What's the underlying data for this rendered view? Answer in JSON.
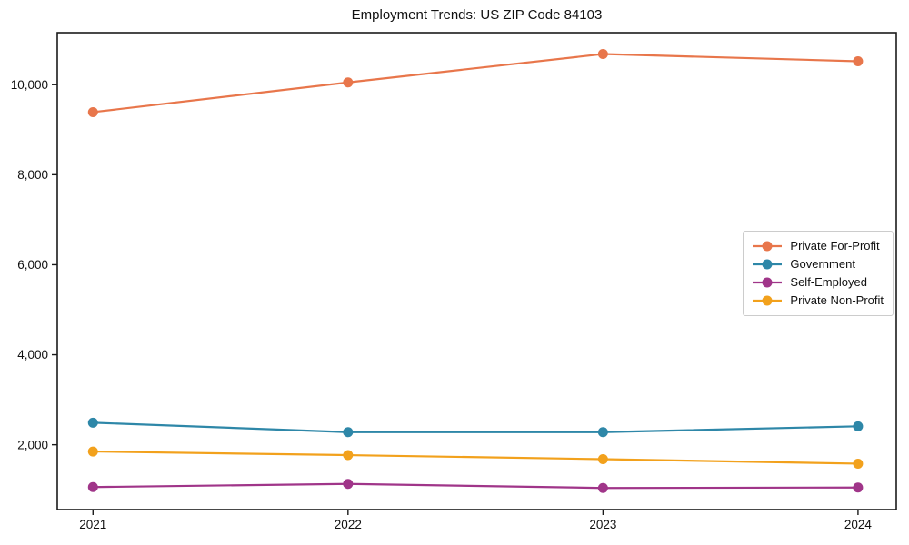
{
  "figure": {
    "title": "Employment Trends: US ZIP Code 84103"
  },
  "chart_data": {
    "type": "line",
    "title": "Employment Trends: US ZIP Code 84103",
    "xlabel": "",
    "ylabel": "",
    "x": [
      2021,
      2022,
      2023,
      2024
    ],
    "x_tick_labels": [
      "2021",
      "2022",
      "2023",
      "2024"
    ],
    "y_ticks": [
      2000,
      4000,
      6000,
      8000,
      10000
    ],
    "y_tick_labels": [
      "2,000",
      "4,000",
      "6,000",
      "8,000",
      "10,000"
    ],
    "xlim": [
      2020.86,
      2024.15
    ],
    "ylim": [
      560,
      11155
    ],
    "grid": false,
    "legend_position": "center right",
    "marker": "o",
    "series": [
      {
        "name": "Private For-Profit",
        "color": "#E8764B",
        "values": [
          9390,
          10050,
          10680,
          10520
        ]
      },
      {
        "name": "Government",
        "color": "#2E87A8",
        "values": [
          2490,
          2280,
          2280,
          2410
        ]
      },
      {
        "name": "Self-Employed",
        "color": "#A03589",
        "values": [
          1060,
          1130,
          1040,
          1050
        ]
      },
      {
        "name": "Private Non-Profit",
        "color": "#F2A11C",
        "values": [
          1850,
          1770,
          1680,
          1580
        ]
      }
    ]
  }
}
